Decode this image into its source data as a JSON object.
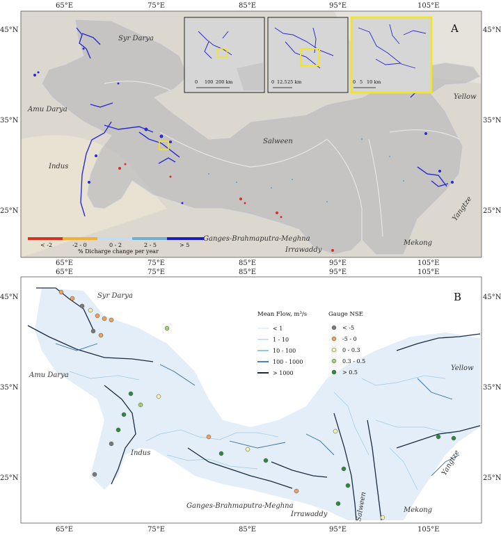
{
  "panel_a": {
    "label": "A",
    "top_ticks": [
      "65°E",
      "75°E",
      "85°E",
      "95°E",
      "105°E"
    ],
    "bottom_ticks": [
      "65°E",
      "75°E",
      "85°E",
      "95°E",
      "105°E"
    ],
    "left_ticks": [
      "45°N",
      "35°N",
      "25°N"
    ],
    "right_ticks": [
      "45°N",
      "35°N",
      "25°N"
    ],
    "basins": {
      "syr_darya": "Syr Darya",
      "amu_darya": "Amu Darya",
      "indus": "Indus",
      "salween": "Salween",
      "yellow": "Yellow",
      "yangtze": "Yangtze",
      "gbm": "Ganges-Brahmaputra-Meghna",
      "irrawaddy": "Irrawaddy",
      "mekong": "Mekong"
    },
    "colorbar": {
      "title": "% Dicharge change per year",
      "labels": [
        "< -2",
        "-2 - 0",
        "0 - 2",
        "2 - 5",
        "> 5"
      ],
      "colors": [
        "#d7301f",
        "#f2b134",
        "#c6dbef",
        "#6baed6",
        "#1c1cbe"
      ]
    },
    "insets": [
      {
        "scale_labels": [
          "0",
          "100",
          "200 km"
        ]
      },
      {
        "scale_labels": [
          "0",
          "12.5",
          "25 km"
        ]
      },
      {
        "scale_labels": [
          "0",
          "5",
          "10 km"
        ]
      }
    ]
  },
  "panel_b": {
    "label": "B",
    "top_ticks": [
      "65°E",
      "75°E",
      "85°E",
      "95°E",
      "105°E"
    ],
    "bottom_ticks": [
      "65°E",
      "75°E",
      "85°E",
      "95°E",
      "105°E"
    ],
    "left_ticks": [
      "45°N",
      "35°N",
      "25°N"
    ],
    "right_ticks": [
      "45°N",
      "35°N",
      "25°N"
    ],
    "basins": {
      "syr_darya": "Syr Darya",
      "amu_darya": "Amu Darya",
      "indus": "Indus",
      "yellow": "Yellow",
      "yangtze": "Yangtze",
      "gbm": "Ganges-Brahmaputra-Meghna",
      "irrawaddy": "Irrawaddy",
      "salween": "Salween",
      "mekong": "Mekong"
    },
    "flow_legend": {
      "title": "Mean Flow, m³/s",
      "items": [
        "< 1",
        "1 - 10",
        "10 - 100",
        "100 - 1000",
        "> 1000"
      ],
      "colors": [
        "#c6dbef",
        "#9ecae1",
        "#6baed6",
        "#2c6fa8",
        "#1a2a40"
      ]
    },
    "nse_legend": {
      "title": "Gauge NSE",
      "items": [
        "< -5",
        "-5 - 0",
        "0 - 0.3",
        "0.3 - 0.5",
        "> 0.5"
      ],
      "colors": [
        "#7a7a7a",
        "#f0a25a",
        "#f4f4b0",
        "#a6d16a",
        "#2e8b3e"
      ]
    }
  }
}
